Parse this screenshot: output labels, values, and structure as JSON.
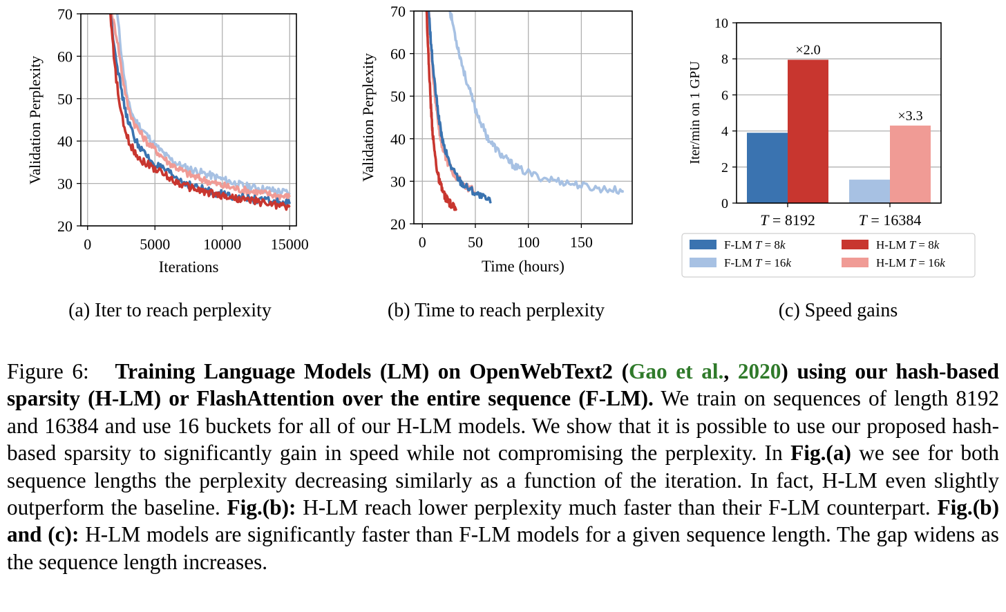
{
  "colors": {
    "f_lm_8k": "#3a73b0",
    "f_lm_16k": "#a7c1e3",
    "h_lm_8k": "#c8362f",
    "h_lm_16k": "#f09b95",
    "grid": "#b0b0b0",
    "citation": "#2f7a2a"
  },
  "chart_data": [
    {
      "type": "line",
      "id": "a",
      "subcaption": "(a)  Iter to reach perplexity",
      "xlabel": "Iterations",
      "ylabel": "Validation Perplexity",
      "xlim": [
        -500,
        15500
      ],
      "ylim": [
        20,
        70
      ],
      "xticks": [
        0,
        5000,
        10000,
        15000
      ],
      "yticks": [
        20,
        30,
        40,
        50,
        60,
        70
      ],
      "grid": true,
      "legend": "none",
      "series": [
        {
          "key": "f_lm_16k",
          "x": [
            2200,
            2600,
            3000,
            3500,
            4000,
            4500,
            5000,
            5500,
            6000,
            6500,
            7000,
            7500,
            8000,
            8500,
            9000,
            9500,
            10000,
            10500,
            11000,
            11500,
            12000,
            12500,
            13000,
            13500,
            14000,
            14500,
            15000
          ],
          "y": [
            70,
            58,
            49,
            45,
            43,
            41,
            39,
            37.5,
            36,
            35,
            34,
            33.5,
            33,
            32.5,
            32,
            31.5,
            31,
            30.5,
            30,
            29.5,
            29.2,
            29,
            28.7,
            28.5,
            28.2,
            28,
            27.8
          ]
        },
        {
          "key": "h_lm_16k",
          "x": [
            1800,
            2200,
            2600,
            3000,
            3500,
            4000,
            4500,
            5000,
            5500,
            6000,
            6500,
            7000,
            7500,
            8000,
            8500,
            9000,
            9500,
            10000,
            10500,
            11000,
            11500,
            12000,
            12500,
            13000,
            13500,
            14000,
            14500,
            15000
          ],
          "y": [
            70,
            64,
            55,
            48,
            44,
            41.5,
            39.5,
            38,
            36.5,
            35,
            34,
            33,
            32.2,
            31.5,
            31,
            30.5,
            30,
            29.5,
            29.2,
            28.8,
            28.5,
            28.2,
            28,
            27.7,
            27.5,
            27.2,
            27,
            26.8
          ]
        },
        {
          "key": "f_lm_8k",
          "x": [
            1700,
            2000,
            2400,
            2800,
            3200,
            3600,
            4000,
            4500,
            5000,
            5500,
            6000,
            6500,
            7000,
            7500,
            8000,
            8500,
            9000,
            9500,
            10000,
            10500,
            11000,
            11500,
            12000,
            12500,
            13000,
            13500,
            14000,
            14500,
            15000
          ],
          "y": [
            70,
            62,
            54,
            47,
            43,
            40,
            38,
            36,
            34.5,
            33.5,
            32.5,
            31.5,
            30.5,
            29.8,
            29.2,
            28.7,
            28.2,
            27.8,
            27.5,
            27.2,
            26.9,
            26.6,
            26.4,
            26.2,
            26,
            25.8,
            25.6,
            25.4,
            25.2
          ]
        },
        {
          "key": "h_lm_8k",
          "x": [
            1700,
            2000,
            2400,
            2800,
            3200,
            3600,
            4000,
            4500,
            5000,
            5500,
            6000,
            6500,
            7000,
            7500,
            8000,
            8500,
            9000,
            9500,
            10000,
            10500,
            11000,
            11500,
            12000,
            12500,
            13000,
            13500,
            14000,
            14500,
            15000
          ],
          "y": [
            70,
            58,
            48,
            42,
            39,
            37,
            35.5,
            34.5,
            33.5,
            32.5,
            31.5,
            30.5,
            29.8,
            29.2,
            28.7,
            28.2,
            27.8,
            27.4,
            27.1,
            26.8,
            26.5,
            26.2,
            26,
            25.8,
            25.5,
            25.2,
            25,
            24.7,
            24.4
          ]
        }
      ]
    },
    {
      "type": "line",
      "id": "b",
      "subcaption": "(b)  Time to reach perplexity",
      "xlabel": "Time (hours)",
      "ylabel": "Validation Perplexity",
      "xlim": [
        -8,
        198
      ],
      "ylim": [
        20,
        70
      ],
      "xticks": [
        0,
        50,
        100,
        150
      ],
      "yticks": [
        20,
        30,
        40,
        50,
        60,
        70
      ],
      "grid": true,
      "legend": "none",
      "series": [
        {
          "key": "f_lm_16k",
          "x": [
            26,
            28,
            32,
            36,
            40,
            45,
            50,
            55,
            60,
            65,
            70,
            75,
            80,
            85,
            90,
            100,
            110,
            120,
            130,
            140,
            150,
            160,
            170,
            180,
            190
          ],
          "y": [
            70,
            68,
            63,
            59,
            55,
            51,
            47,
            44,
            41,
            39,
            37.5,
            36,
            35,
            34,
            33,
            32,
            31,
            30.5,
            30,
            29.5,
            29,
            28.5,
            28.2,
            28,
            27.7
          ]
        },
        {
          "key": "h_lm_16k",
          "x": [
            6,
            8,
            10,
            12,
            14,
            16,
            18,
            20,
            24,
            28,
            32,
            36,
            40,
            45,
            50
          ],
          "y": [
            70,
            62,
            55,
            50,
            46,
            42,
            39,
            37,
            34.5,
            32.5,
            31,
            30,
            29,
            28.2,
            27.5
          ]
        },
        {
          "key": "f_lm_8k",
          "x": [
            6,
            8,
            10,
            12,
            14,
            16,
            18,
            20,
            24,
            28,
            32,
            36,
            40,
            45,
            50,
            55,
            60,
            65
          ],
          "y": [
            70,
            63,
            57,
            52,
            48,
            44,
            41,
            38.5,
            35.5,
            33,
            31.5,
            30,
            29,
            28.2,
            27.3,
            26.5,
            25.8,
            25.2
          ]
        },
        {
          "key": "h_lm_8k",
          "x": [
            4,
            5,
            6,
            7,
            8,
            9,
            10,
            12,
            14,
            16,
            18,
            20,
            22,
            24,
            26,
            28,
            30,
            32
          ],
          "y": [
            70,
            64,
            58,
            53,
            48,
            44,
            40.5,
            36,
            32.5,
            30,
            28.5,
            27.2,
            26.2,
            25.4,
            24.8,
            24.2,
            23.8,
            23.5
          ]
        }
      ]
    },
    {
      "type": "bar",
      "id": "c",
      "subcaption": "(c)  Speed gains",
      "xlabel": "",
      "ylabel": "Iter/min on 1 GPU",
      "ylim": [
        0,
        10
      ],
      "yticks": [
        0,
        2,
        4,
        6,
        8,
        10
      ],
      "grid": true,
      "categories": [
        "T = 8192",
        "T = 16384"
      ],
      "series": [
        {
          "key": "f_lm",
          "name": "F-LM",
          "values": [
            3.9,
            1.3
          ]
        },
        {
          "key": "h_lm",
          "name": "H-LM",
          "values": [
            7.95,
            4.3
          ]
        }
      ],
      "annotations": [
        "×2.0",
        "×3.3"
      ],
      "legend_position": "bottom",
      "legend": [
        {
          "key": "f_lm_8k",
          "label": "F-LM T = 8k"
        },
        {
          "key": "h_lm_8k",
          "label": "H-LM T = 8k"
        },
        {
          "key": "f_lm_16k",
          "label": "F-LM T = 16k"
        },
        {
          "key": "h_lm_16k",
          "label": "H-LM T = 16k"
        }
      ]
    }
  ],
  "caption": {
    "label": "Figure 6:",
    "bold_a": "Training Language Models (LM) on OpenWebText2 (",
    "cite_author": "Gao et al.",
    "cite_sep": ", ",
    "cite_year": "2020",
    "bold_b": ") using our hash-based sparsity (H-LM) or FlashAttention over the entire sequence (F-LM).",
    "text_1": " We train on sequences of length 8192 and 16384 and use 16 buckets for all of our H-LM models.  We show that it is possible to use our proposed hash-based sparsity to significantly gain in speed while not compromising the perplexity. In ",
    "ref_a": "Fig.(a)",
    "text_2": " we see for both sequence lengths the perplexity decreasing similarly as a function of the iteration. In fact, H-LM even slightly outperform the baseline. ",
    "ref_b": "Fig.(b):",
    "text_3": " H-LM reach lower perplexity much faster than their F-LM counterpart.  ",
    "ref_bc": "Fig.(b) and (c):",
    "text_4": " H-LM models are significantly faster than F-LM models for a given sequence length. The gap widens as the sequence length increases."
  }
}
